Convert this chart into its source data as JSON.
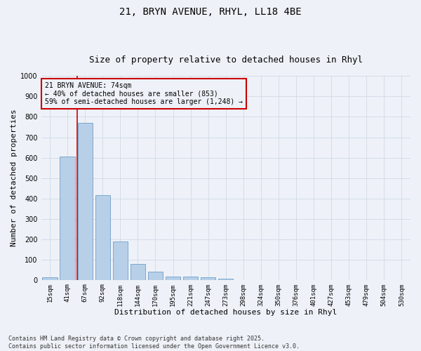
{
  "title_line1": "21, BRYN AVENUE, RHYL, LL18 4BE",
  "title_line2": "Size of property relative to detached houses in Rhyl",
  "xlabel": "Distribution of detached houses by size in Rhyl",
  "ylabel": "Number of detached properties",
  "categories": [
    "15sqm",
    "41sqm",
    "67sqm",
    "92sqm",
    "118sqm",
    "144sqm",
    "170sqm",
    "195sqm",
    "221sqm",
    "247sqm",
    "273sqm",
    "298sqm",
    "324sqm",
    "350sqm",
    "376sqm",
    "401sqm",
    "427sqm",
    "453sqm",
    "479sqm",
    "504sqm",
    "530sqm"
  ],
  "values": [
    12,
    605,
    770,
    415,
    190,
    78,
    40,
    17,
    15,
    12,
    7,
    0,
    0,
    0,
    0,
    0,
    0,
    0,
    0,
    0,
    0
  ],
  "bar_color": "#b8cfe8",
  "bar_edge_color": "#6ea0c8",
  "grid_color": "#d4dce8",
  "background_color": "#eef2f8",
  "vline_color": "#cc0000",
  "annotation_text": "21 BRYN AVENUE: 74sqm\n← 40% of detached houses are smaller (853)\n59% of semi-detached houses are larger (1,248) →",
  "annotation_box_color": "#cc0000",
  "ylim": [
    0,
    1000
  ],
  "yticks": [
    0,
    100,
    200,
    300,
    400,
    500,
    600,
    700,
    800,
    900,
    1000
  ],
  "footnote": "Contains HM Land Registry data © Crown copyright and database right 2025.\nContains public sector information licensed under the Open Government Licence v3.0.",
  "title_fontsize": 10,
  "subtitle_fontsize": 9,
  "axis_label_fontsize": 8,
  "tick_fontsize": 6.5,
  "annotation_fontsize": 7,
  "footnote_fontsize": 6
}
